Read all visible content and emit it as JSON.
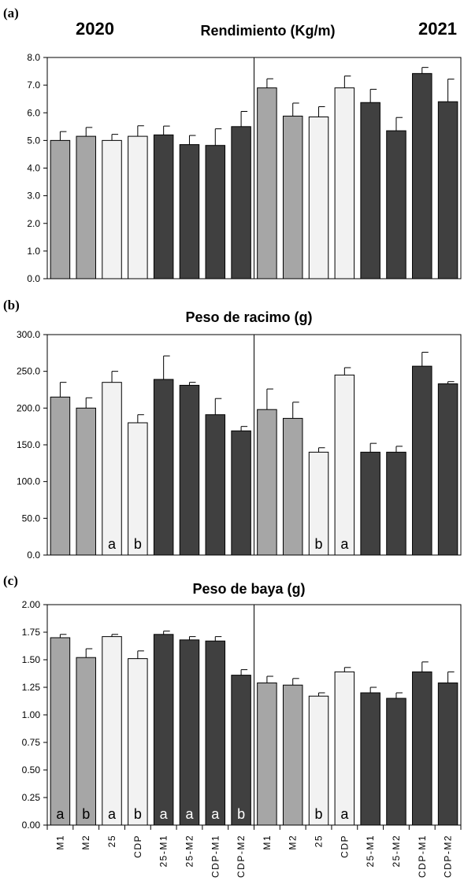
{
  "colors": {
    "M": "#a6a6a6",
    "25": "#f2f2f2",
    "CDP": "#f2f2f2",
    "combo": "#404040",
    "stroke": "#000000"
  },
  "years": [
    "2020",
    "2021"
  ],
  "chart_data": [
    {
      "panel": "(a)",
      "type": "bar",
      "title": "Rendimiento (Kg/m)",
      "ylim": [
        0,
        8
      ],
      "yticks": [
        "0.0",
        "1.0",
        "2.0",
        "3.0",
        "4.0",
        "5.0",
        "6.0",
        "7.0",
        "8.0"
      ],
      "categories": [
        "M1",
        "M2",
        "25",
        "CDP",
        "25-M1",
        "25-M2",
        "CDP-M1",
        "CDP-M2",
        "M1",
        "M2",
        "25",
        "CDP",
        "25-M1",
        "25-M2",
        "CDP-M1",
        "CDP-M2"
      ],
      "groups": [
        "M",
        "M",
        "25",
        "CDP",
        "combo",
        "combo",
        "combo",
        "combo",
        "M",
        "M",
        "25",
        "CDP",
        "combo",
        "combo",
        "combo",
        "combo"
      ],
      "values": [
        5.0,
        5.15,
        5.0,
        5.15,
        5.2,
        4.85,
        4.82,
        5.5,
        6.9,
        5.88,
        5.85,
        6.9,
        6.37,
        5.35,
        7.42,
        6.4
      ],
      "errors": [
        0.32,
        0.32,
        0.22,
        0.38,
        0.32,
        0.33,
        0.6,
        0.55,
        0.33,
        0.47,
        0.37,
        0.43,
        0.48,
        0.48,
        0.22,
        0.82
      ],
      "sig_labels": [
        "",
        "",
        "",
        "",
        "",
        "",
        "",
        "",
        "",
        "",
        "",
        "",
        "",
        "",
        "",
        ""
      ]
    },
    {
      "panel": "(b)",
      "type": "bar",
      "title": "Peso de racimo (g)",
      "ylim": [
        0,
        300
      ],
      "yticks": [
        "0.0",
        "50.0",
        "100.0",
        "150.0",
        "200.0",
        "250.0",
        "300.0"
      ],
      "categories": [
        "M1",
        "M2",
        "25",
        "CDP",
        "25-M1",
        "25-M2",
        "CDP-M1",
        "CDP-M2",
        "M1",
        "M2",
        "25",
        "CDP",
        "25-M1",
        "25-M2",
        "CDP-M1",
        "CDP-M2"
      ],
      "groups": [
        "M",
        "M",
        "25",
        "CDP",
        "combo",
        "combo",
        "combo",
        "combo",
        "M",
        "M",
        "25",
        "CDP",
        "combo",
        "combo",
        "combo",
        "combo"
      ],
      "values": [
        215,
        200,
        235,
        180,
        239,
        231,
        191,
        169,
        198,
        186,
        140,
        245,
        140,
        140,
        257,
        233
      ],
      "errors": [
        20,
        14,
        15,
        11,
        32,
        4,
        22,
        6,
        28,
        22,
        6,
        10,
        12,
        8,
        19,
        3
      ],
      "sig_labels": [
        "",
        "",
        "a",
        "b",
        "",
        "",
        "",
        "",
        "",
        "",
        "b",
        "a",
        "",
        "",
        "",
        ""
      ]
    },
    {
      "panel": "(c)",
      "type": "bar",
      "title": "Peso de baya (g)",
      "ylim": [
        0,
        2
      ],
      "yticks": [
        "0.00",
        "0.25",
        "0.50",
        "0.75",
        "1.00",
        "1.25",
        "1.50",
        "1.75",
        "2.00"
      ],
      "categories": [
        "M1",
        "M2",
        "25",
        "CDP",
        "25-M1",
        "25-M2",
        "CDP-M1",
        "CDP-M2",
        "M1",
        "M2",
        "25",
        "CDP",
        "25-M1",
        "25-M2",
        "CDP-M1",
        "CDP-M2"
      ],
      "groups": [
        "M",
        "M",
        "25",
        "CDP",
        "combo",
        "combo",
        "combo",
        "combo",
        "M",
        "M",
        "25",
        "CDP",
        "combo",
        "combo",
        "combo",
        "combo"
      ],
      "values": [
        1.7,
        1.52,
        1.71,
        1.51,
        1.73,
        1.68,
        1.67,
        1.36,
        1.29,
        1.27,
        1.17,
        1.39,
        1.2,
        1.15,
        1.39,
        1.29
      ],
      "errors": [
        0.03,
        0.08,
        0.02,
        0.07,
        0.03,
        0.03,
        0.04,
        0.05,
        0.06,
        0.06,
        0.03,
        0.04,
        0.05,
        0.05,
        0.09,
        0.1
      ],
      "sig_labels": [
        "a",
        "b",
        "a",
        "b",
        "a",
        "a",
        "a",
        "b",
        "",
        "",
        "b",
        "a",
        "",
        "",
        "",
        ""
      ]
    }
  ]
}
